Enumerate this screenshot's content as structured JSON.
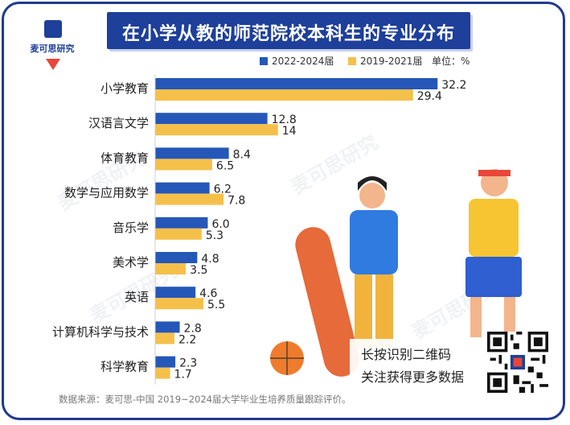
{
  "header": {
    "title": "在小学从教的师范院校本科生的专业分布",
    "logo_label": "麦可思研究"
  },
  "legend": {
    "series_a": "2022-2024届",
    "series_b": "2019-2021届",
    "unit": "单位：%"
  },
  "colors": {
    "frame": "#1f3a8f",
    "banner": "#1e3f9a",
    "series_a": "#2557b8",
    "series_b": "#f5c04a",
    "logo_arrow": "#e8473a"
  },
  "chart_data": {
    "type": "bar",
    "orientation": "horizontal",
    "categories": [
      "小学教育",
      "汉语言文学",
      "体育教育",
      "数学与应用数学",
      "音乐学",
      "美术学",
      "英语",
      "计算机科学与技术",
      "科学教育"
    ],
    "series": [
      {
        "name": "2022-2024届",
        "values": [
          32.2,
          12.8,
          8.4,
          6.2,
          6.0,
          4.8,
          4.6,
          2.8,
          2.3
        ]
      },
      {
        "name": "2019-2021届",
        "values": [
          29.4,
          14,
          6.5,
          7.8,
          5.3,
          3.5,
          5.5,
          2.2,
          1.7
        ]
      }
    ],
    "value_labels": {
      "series_a": [
        "32.2",
        "12.8",
        "8.4",
        "6.2",
        "6.0",
        "4.8",
        "4.6",
        "2.8",
        "2.3"
      ],
      "series_b": [
        "29.4",
        "14",
        "6.5",
        "7.8",
        "5.3",
        "3.5",
        "5.5",
        "2.2",
        "1.7"
      ]
    },
    "title": "在小学从教的师范院校本科生的专业分布",
    "unit": "%",
    "xlim": [
      0,
      33
    ],
    "grid": false,
    "legend_position": "top-right"
  },
  "qr": {
    "line1": "长按识别二维码",
    "line2": "关注获得更多数据"
  },
  "watermark": "麦可思研究",
  "source": "数据来源：麦可思-中国 2019~2024届大学毕业生培养质量跟踪评价。"
}
